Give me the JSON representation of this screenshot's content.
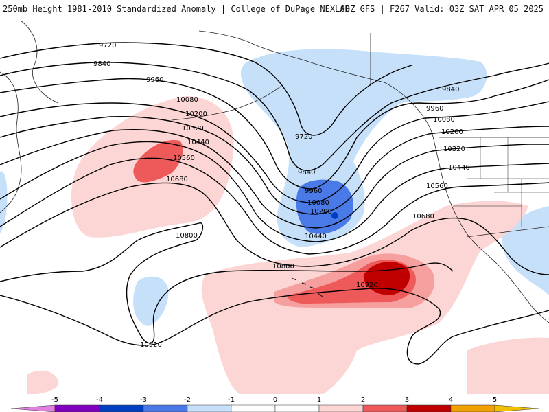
{
  "header": {
    "title_left": "250mb Height 1981-2010 Standardized Anomaly | College of DuPage NEXLAB",
    "title_right": "00Z GFS | F267 Valid: 03Z SAT APR 05 2025"
  },
  "colors": {
    "neg5": "#e080e0",
    "neg4": "#8000c0",
    "neg3": "#0040c0",
    "neg2": "#4a7ae8",
    "neg1": "#c6e0fa",
    "pos1": "#fcd5d5",
    "pos2": "#f59f9f",
    "pos3": "#ee5a5a",
    "pos4": "#c00000",
    "pos5": "#f0a000",
    "coast": "#222222",
    "contour": "#000000"
  },
  "contour_labels": [
    {
      "text": "9720"
    },
    {
      "text": "9840"
    },
    {
      "text": "9960"
    },
    {
      "text": "10080"
    },
    {
      "text": "10200"
    },
    {
      "text": "10320"
    },
    {
      "text": "10440"
    },
    {
      "text": "10560"
    },
    {
      "text": "10680"
    },
    {
      "text": "10800"
    },
    {
      "text": "9720"
    },
    {
      "text": "9840"
    },
    {
      "text": "9960"
    },
    {
      "text": "10080"
    },
    {
      "text": "10200"
    },
    {
      "text": "10440"
    },
    {
      "text": "9840"
    },
    {
      "text": "9960"
    },
    {
      "text": "10080"
    },
    {
      "text": "10200"
    },
    {
      "text": "10320"
    },
    {
      "text": "10440"
    },
    {
      "text": "10560"
    },
    {
      "text": "10680"
    },
    {
      "text": "10800"
    },
    {
      "text": "10920"
    },
    {
      "text": "10920"
    }
  ],
  "legend": {
    "ticks": [
      "-5",
      "-4",
      "-3",
      "-2",
      "-1",
      "0",
      "1",
      "2",
      "3",
      "4",
      "5"
    ]
  }
}
